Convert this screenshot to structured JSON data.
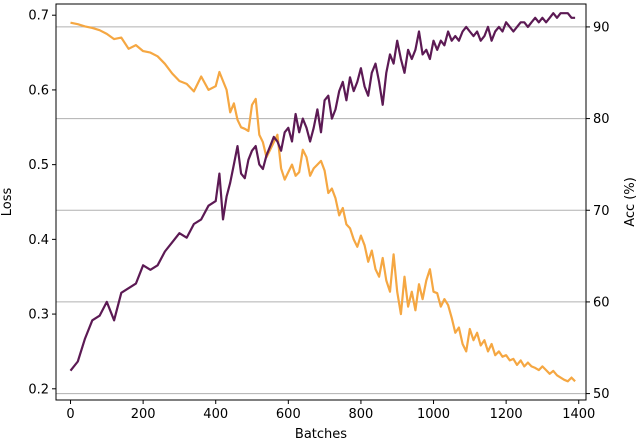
{
  "chart_data": {
    "type": "line",
    "title": "",
    "xlabel": "Batches",
    "ylabel_left": "Loss",
    "ylabel_right": "Acc (%)",
    "xlim": [
      -40,
      1420
    ],
    "ylim_left": [
      0.185,
      0.715
    ],
    "ylim_right": [
      49.3,
      92.5
    ],
    "xticks": [
      0,
      200,
      400,
      600,
      800,
      1000,
      1200,
      1400
    ],
    "yticks_left": [
      0.2,
      0.3,
      0.4,
      0.5,
      0.6,
      0.7
    ],
    "yticks_right": [
      50,
      60,
      70,
      80,
      90
    ],
    "grid": "horizontal lines at right-axis ticks",
    "series": [
      {
        "axis": "left",
        "color": "#f5a742",
        "x": [
          0,
          20,
          40,
          60,
          80,
          100,
          120,
          140,
          160,
          180,
          200,
          220,
          240,
          260,
          280,
          300,
          320,
          340,
          360,
          380,
          400,
          410,
          420,
          430,
          440,
          450,
          460,
          470,
          480,
          490,
          500,
          510,
          520,
          530,
          540,
          550,
          560,
          570,
          580,
          590,
          600,
          610,
          620,
          630,
          640,
          650,
          660,
          670,
          680,
          690,
          700,
          710,
          720,
          730,
          740,
          750,
          760,
          770,
          780,
          790,
          800,
          810,
          820,
          830,
          840,
          850,
          860,
          870,
          880,
          890,
          900,
          910,
          920,
          930,
          940,
          950,
          960,
          970,
          980,
          990,
          1000,
          1010,
          1020,
          1030,
          1040,
          1050,
          1060,
          1070,
          1080,
          1090,
          1100,
          1110,
          1120,
          1130,
          1140,
          1150,
          1160,
          1170,
          1180,
          1190,
          1200,
          1210,
          1220,
          1230,
          1240,
          1250,
          1260,
          1270,
          1280,
          1290,
          1300,
          1310,
          1320,
          1330,
          1340,
          1350,
          1360,
          1370,
          1380,
          1390
        ],
        "values": [
          0.69,
          0.688,
          0.685,
          0.683,
          0.68,
          0.675,
          0.668,
          0.67,
          0.655,
          0.66,
          0.652,
          0.65,
          0.645,
          0.635,
          0.622,
          0.612,
          0.608,
          0.598,
          0.618,
          0.6,
          0.605,
          0.624,
          0.612,
          0.6,
          0.57,
          0.582,
          0.56,
          0.55,
          0.548,
          0.545,
          0.58,
          0.588,
          0.54,
          0.53,
          0.51,
          0.52,
          0.53,
          0.54,
          0.495,
          0.48,
          0.49,
          0.5,
          0.485,
          0.49,
          0.52,
          0.51,
          0.485,
          0.495,
          0.5,
          0.505,
          0.492,
          0.462,
          0.468,
          0.455,
          0.432,
          0.442,
          0.42,
          0.415,
          0.4,
          0.39,
          0.405,
          0.392,
          0.37,
          0.385,
          0.36,
          0.35,
          0.375,
          0.345,
          0.33,
          0.38,
          0.33,
          0.3,
          0.35,
          0.31,
          0.33,
          0.305,
          0.34,
          0.32,
          0.345,
          0.36,
          0.33,
          0.328,
          0.31,
          0.32,
          0.312,
          0.295,
          0.275,
          0.282,
          0.26,
          0.25,
          0.28,
          0.265,
          0.275,
          0.258,
          0.265,
          0.25,
          0.26,
          0.245,
          0.25,
          0.243,
          0.245,
          0.238,
          0.24,
          0.232,
          0.238,
          0.23,
          0.235,
          0.23,
          0.228,
          0.225,
          0.23,
          0.225,
          0.22,
          0.224,
          0.218,
          0.215,
          0.212,
          0.21,
          0.215,
          0.21
        ]
      },
      {
        "axis": "right",
        "color": "#5c1a54",
        "x": [
          0,
          20,
          40,
          60,
          80,
          100,
          120,
          140,
          160,
          180,
          200,
          220,
          240,
          260,
          280,
          300,
          320,
          340,
          360,
          380,
          400,
          410,
          420,
          430,
          440,
          450,
          460,
          470,
          480,
          490,
          500,
          510,
          520,
          530,
          540,
          550,
          560,
          570,
          580,
          590,
          600,
          610,
          620,
          630,
          640,
          650,
          660,
          670,
          680,
          690,
          700,
          710,
          720,
          730,
          740,
          750,
          760,
          770,
          780,
          790,
          800,
          810,
          820,
          830,
          840,
          850,
          860,
          870,
          880,
          890,
          900,
          910,
          920,
          930,
          940,
          950,
          960,
          970,
          980,
          990,
          1000,
          1010,
          1020,
          1030,
          1040,
          1050,
          1060,
          1070,
          1080,
          1090,
          1100,
          1110,
          1120,
          1130,
          1140,
          1150,
          1160,
          1170,
          1180,
          1190,
          1200,
          1210,
          1220,
          1230,
          1240,
          1250,
          1260,
          1270,
          1280,
          1290,
          1300,
          1310,
          1320,
          1330,
          1340,
          1350,
          1360,
          1370,
          1380,
          1390
        ],
        "values": [
          52.5,
          53.5,
          56,
          58,
          58.5,
          60,
          58,
          61,
          61.5,
          62,
          64,
          63.5,
          64,
          65.5,
          66.5,
          67.5,
          67,
          68.5,
          69,
          70.5,
          71,
          74,
          69,
          71.5,
          73,
          75,
          77,
          74,
          73.5,
          75.5,
          76.5,
          77,
          75,
          74.5,
          76,
          77,
          78,
          77.5,
          76.5,
          78.5,
          79,
          77.5,
          80.5,
          78.5,
          80,
          79,
          77.5,
          79,
          81,
          78.5,
          82,
          82.5,
          80,
          81,
          83,
          84,
          82,
          84.5,
          83,
          84,
          85.5,
          83.5,
          82.5,
          85,
          86,
          84,
          81.5,
          85,
          87,
          86,
          88.5,
          86.5,
          85,
          87.5,
          86.5,
          87.5,
          89.5,
          87,
          87.5,
          86.5,
          88.5,
          87.5,
          88.5,
          88,
          89.5,
          88.5,
          89,
          88.5,
          89.5,
          90,
          89.5,
          89,
          89.5,
          88.5,
          89,
          90,
          88.5,
          89.5,
          90,
          89.5,
          90.5,
          90,
          89.5,
          90,
          90.5,
          90.5,
          90,
          90.5,
          91,
          90.5,
          91,
          90.5,
          91,
          91.5,
          91,
          91.5,
          91.5,
          91.5,
          91,
          91
        ]
      }
    ]
  }
}
